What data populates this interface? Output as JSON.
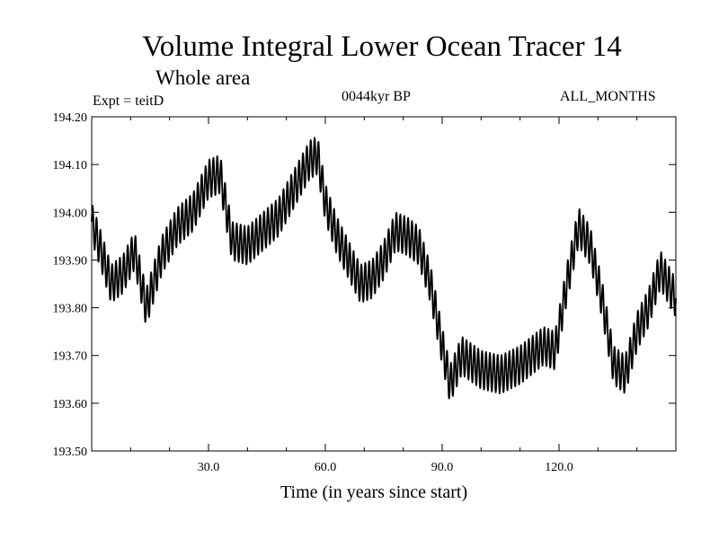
{
  "chart_data": {
    "type": "line",
    "title": "Volume Integral Lower Ocean Tracer 14",
    "subtitle": "Whole area",
    "experiment_label": "Expt = teitD",
    "period_label": "0044kyr BP",
    "months_label": "ALL_MONTHS",
    "xlabel": "Time (in years since start)",
    "ylabel": "",
    "xlim": [
      0,
      150
    ],
    "ylim": [
      193.5,
      194.2
    ],
    "x_ticks": [
      30,
      60,
      90,
      120
    ],
    "x_tick_labels": [
      "30.0",
      "60.0",
      "90.0",
      "120.0"
    ],
    "x_minor_ticks": [
      10,
      20,
      40,
      50,
      70,
      80,
      100,
      110,
      130,
      140
    ],
    "y_ticks": [
      193.5,
      193.6,
      193.7,
      193.8,
      193.9,
      194.0,
      194.1,
      194.2
    ],
    "y_tick_labels": [
      "193.50",
      "193.60",
      "193.70",
      "193.80",
      "193.90",
      "194.00",
      "194.10",
      "194.20"
    ],
    "grid": false,
    "seasonal_amplitude": 0.04,
    "seasonal_period_years": 1,
    "trend": {
      "x": [
        0,
        2,
        5,
        8,
        11,
        14,
        18,
        22,
        26,
        30,
        33,
        36,
        40,
        44,
        48,
        52,
        56,
        58,
        60,
        63,
        66,
        69,
        72,
        75,
        78,
        81,
        84,
        87,
        90,
        92,
        95,
        100,
        105,
        110,
        113,
        116,
        119,
        122,
        125,
        128,
        131,
        134,
        137,
        140,
        143,
        146,
        150
      ],
      "y": [
        193.98,
        193.93,
        193.85,
        193.87,
        193.92,
        193.8,
        193.91,
        193.97,
        194.0,
        194.07,
        194.08,
        193.94,
        193.93,
        193.96,
        193.99,
        194.05,
        194.11,
        194.12,
        194.02,
        193.95,
        193.9,
        193.85,
        193.86,
        193.9,
        193.96,
        193.95,
        193.93,
        193.85,
        193.72,
        193.64,
        193.7,
        193.67,
        193.66,
        193.68,
        193.7,
        193.72,
        193.71,
        193.85,
        193.97,
        193.93,
        193.82,
        193.68,
        193.66,
        193.75,
        193.8,
        193.88,
        193.82
      ]
    },
    "series": [
      {
        "name": "Volume Integral Lower Ocean Tracer 14",
        "color": "#000000"
      }
    ]
  }
}
